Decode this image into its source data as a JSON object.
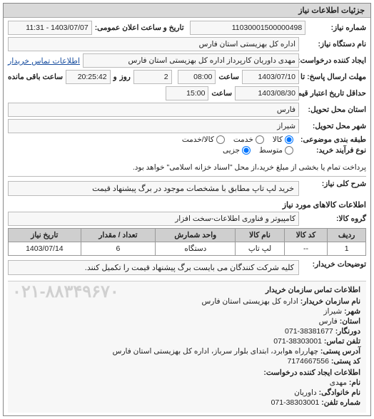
{
  "panel": {
    "title": "جزئیات اطلاعات نیاز"
  },
  "labels": {
    "need_no": "شماره نیاز:",
    "announce": "تاریخ و ساعت اعلان عمومی:",
    "org_name": "نام دستگاه نیاز:",
    "creator": "ایجاد کننده درخواست:",
    "send_deadline": "مهلت ارسال پاسخ: تا تاریخ:",
    "time": "ساعت",
    "and": "و",
    "day": "روز",
    "remain": "ساعت باقی مانده",
    "price_valid": "حداقل تاریخ اعتبار قیمت: تا تاریخ:",
    "province": "استان محل تحویل:",
    "city": "شهر محل تحویل:",
    "subject_cat": "طبقه بندی موضوعی:",
    "buy_process": "نوع فرآیند خرید:",
    "buy_process_note": "پرداخت تمام یا بخشی از مبلغ خرید،از محل \"اسناد خزانه اسلامی\" خواهد بود.",
    "need_title": "شرح کلی نیاز:",
    "goods_info": "اطلاعات کالاهای مورد نیاز",
    "goods_group": "گروه کالا:",
    "buyer_note": "توضیحات خریدار:",
    "contact_title": "اطلاعات تماس سازمان خریدار",
    "contact_org": "نام سازمان خریدار:",
    "contact_city": "شهر:",
    "contact_province": "استان:",
    "contact_unit": "دورنگار:",
    "contact_phone": "تلفن تماس:",
    "contact_address": "آدرس پستی:",
    "contact_post": "کد پستی:",
    "contact_creator": "اطلاعات ایجاد کننده درخواست:",
    "contact_name": "نام:",
    "contact_family": "نام خانوادگی:",
    "contact_tel": "شماره تلفن:",
    "contact_link": "اطلاعات تماس خریدار"
  },
  "fields": {
    "need_no": "11030001500000498",
    "announce": "1403/07/07 - 11:31",
    "org_name": "اداره کل بهزیستی استان فارس",
    "creator": "مهدی داوریان کارپرداز اداره کل بهزیستی استان فارس",
    "send_date": "1403/07/10",
    "send_time": "08:00",
    "remain_days": "2",
    "remain_time": "20:25:42",
    "price_valid_date": "1403/08/30",
    "price_valid_time": "15:00",
    "province": "فارس",
    "city": "شیراز",
    "need_title": "خرید لپ تاپ مطابق با مشخصات موجود در برگ پیشنهاد قیمت",
    "goods_group": "کامپیوتر و فناوری اطلاعات-سخت افزار",
    "buyer_note": "کلیه شرکت کنندگان می بایست برگ پیشنهاد قیمت را تکمیل کنند."
  },
  "subject_options": {
    "kala": "کالا",
    "service": "خدمت",
    "kala_service": "کالا/خدمت"
  },
  "process_options": {
    "mid": "متوسط",
    "partial": "جزیی"
  },
  "checked": {
    "kala": true,
    "service": false,
    "kala_service": false,
    "mid": false,
    "partial": true
  },
  "table": {
    "headers": [
      "ردیف",
      "کد کالا",
      "نام کالا",
      "واحد شمارش",
      "تعداد / مقدار",
      "تاریخ نیاز"
    ],
    "rows": [
      [
        "1",
        "--",
        "لپ تاپ",
        "دستگاه",
        "6",
        "1403/07/14"
      ]
    ]
  },
  "contact": {
    "org": "اداره کل بهزیستی استان فارس",
    "city": "شیراز",
    "province": "فارس",
    "unit": "38381677-071",
    "phone": "38303001-071",
    "address": "چهارراه هوابرد، ابتدای بلوار سرباز، اداره کل بهزیستی استان فارس",
    "post": "7174667556",
    "name": "مهدی",
    "family": "داوریان",
    "tel": "38303001-071"
  },
  "watermark": "۰۲۱-۸۸۳۴۹۶۷۰"
}
